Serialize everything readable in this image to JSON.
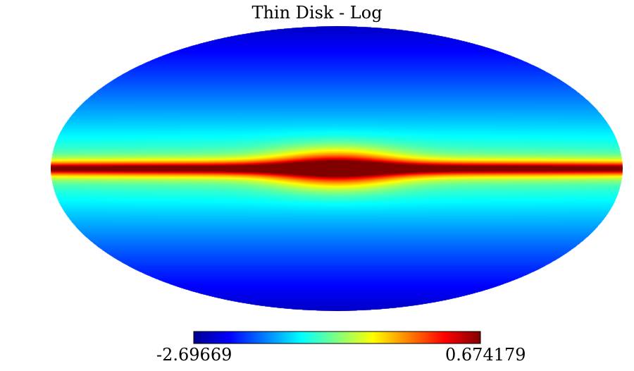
{
  "chart_data": {
    "type": "heatmap",
    "projection": "mollweide",
    "title": "Thin Disk - Log",
    "colormap": "jet",
    "colorbar": {
      "min": -2.69669,
      "max": 0.674179,
      "min_label": "-2.69669",
      "max_label": "0.674179",
      "placement": "bottom"
    },
    "grid": false
  }
}
